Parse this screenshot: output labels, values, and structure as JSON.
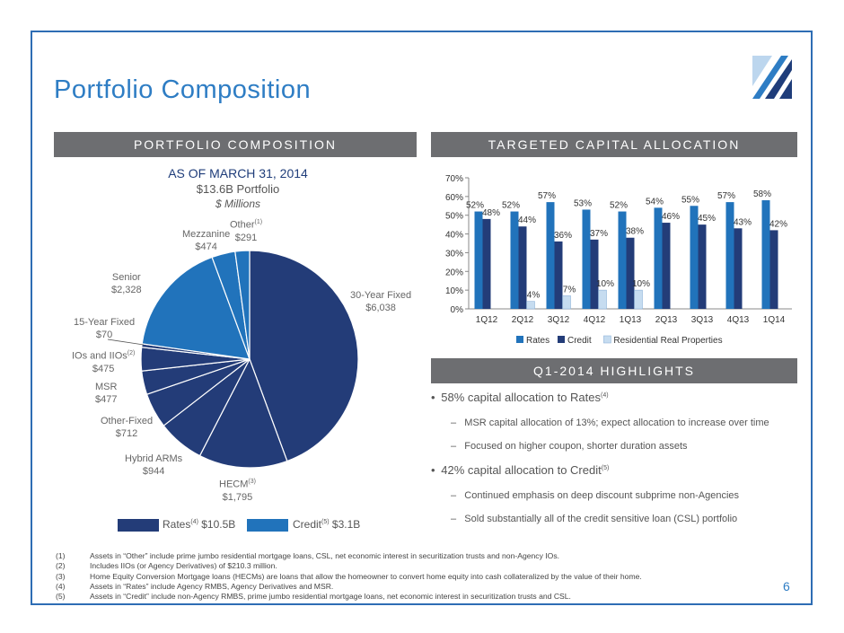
{
  "title": "Portfolio Composition",
  "page_number": "6",
  "headers": {
    "left": "PORTFOLIO COMPOSITION",
    "right_top": "TARGETED CAPITAL ALLOCATION",
    "right_bottom": "Q1-2014 HIGHLIGHTS"
  },
  "pie": {
    "as_of": "AS OF MARCH 31, 2014",
    "total": "$13.6B Portfolio",
    "units": "$ Millions",
    "slices": [
      {
        "key": "thirty",
        "label": "30-Year Fixed",
        "sup": "",
        "value_text": "$6,038",
        "value": 6038,
        "color": "#233c78"
      },
      {
        "key": "hecm",
        "label": "HECM",
        "sup": "(3)",
        "value_text": "$1,795",
        "value": 1795,
        "color": "#233c78"
      },
      {
        "key": "hybrid",
        "label": "Hybrid ARMs",
        "sup": "",
        "value_text": "$944",
        "value": 944,
        "color": "#233c78"
      },
      {
        "key": "otherfixed",
        "label": "Other-Fixed",
        "sup": "",
        "value_text": "$712",
        "value": 712,
        "color": "#233c78"
      },
      {
        "key": "msr",
        "label": "MSR",
        "sup": "",
        "value_text": "$477",
        "value": 477,
        "color": "#233c78"
      },
      {
        "key": "ios",
        "label": "IOs and IIOs",
        "sup": "(2)",
        "value_text": "$475",
        "value": 475,
        "color": "#233c78"
      },
      {
        "key": "fifteen",
        "label": "15-Year Fixed",
        "sup": "",
        "value_text": "$70",
        "value": 70,
        "color": "#233c78"
      },
      {
        "key": "senior",
        "label": "Senior",
        "sup": "",
        "value_text": "$2,328",
        "value": 2328,
        "color": "#2173bb"
      },
      {
        "key": "mezz",
        "label": "Mezzanine",
        "sup": "",
        "value_text": "$474",
        "value": 474,
        "color": "#2173bb"
      },
      {
        "key": "other",
        "label": "Other",
        "sup": "(1)",
        "value_text": "$291",
        "value": 291,
        "color": "#2173bb"
      }
    ],
    "legend": [
      {
        "label": "Rates",
        "sup": "(4)",
        "value": " $10.5B",
        "color": "#233c78"
      },
      {
        "label": "Credit",
        "sup": "(5)",
        "value": " $3.1B",
        "color": "#2173bb"
      }
    ]
  },
  "chart_data": {
    "type": "bar",
    "categories": [
      "1Q12",
      "2Q12",
      "3Q12",
      "4Q12",
      "1Q13",
      "2Q13",
      "3Q13",
      "4Q13",
      "1Q14"
    ],
    "series": [
      {
        "name": "Rates",
        "color": "#2173bb",
        "values": [
          52,
          52,
          57,
          53,
          52,
          54,
          55,
          57,
          58
        ]
      },
      {
        "name": "Credit",
        "color": "#233c78",
        "values": [
          48,
          44,
          36,
          37,
          38,
          46,
          45,
          43,
          42
        ]
      },
      {
        "name": "Residential Real Properties",
        "color": "#c6dcf0",
        "values": [
          null,
          4,
          7,
          10,
          10,
          null,
          null,
          null,
          null
        ]
      }
    ],
    "yticks": [
      "0%",
      "10%",
      "20%",
      "30%",
      "40%",
      "50%",
      "60%",
      "70%"
    ],
    "ylim": [
      0,
      70
    ],
    "legend_position": "bottom",
    "grid": false
  },
  "highlights": [
    {
      "level": 1,
      "text": "58% capital allocation to Rates",
      "sup": "(4)"
    },
    {
      "level": 2,
      "text": "MSR capital allocation of 13%; expect allocation to increase over time",
      "sup": ""
    },
    {
      "level": 2,
      "text": "Focused on higher coupon, shorter duration assets",
      "sup": ""
    },
    {
      "level": 1,
      "text": "42% capital allocation to Credit",
      "sup": "(5)"
    },
    {
      "level": 2,
      "text": "Continued emphasis on deep discount subprime non-Agencies",
      "sup": ""
    },
    {
      "level": 2,
      "text": "Sold substantially all of the credit sensitive loan (CSL) portfolio",
      "sup": ""
    }
  ],
  "footnotes": [
    {
      "num": "(1)",
      "text": "Assets in “Other” include prime jumbo residential mortgage loans, CSL, net economic interest in securitization trusts and non-Agency IOs."
    },
    {
      "num": "(2)",
      "text": "Includes IIOs (or Agency Derivatives) of $210.3 million."
    },
    {
      "num": "(3)",
      "text": "Home Equity Conversion Mortgage loans (HECMs) are loans that allow the homeowner to convert home equity into cash collateralized by the value of their home."
    },
    {
      "num": "(4)",
      "text": "Assets in “Rates” include Agency RMBS, Agency Derivatives and MSR."
    },
    {
      "num": "(5)",
      "text": "Assets in “Credit” include non-Agency RMBS, prime jumbo residential mortgage loans, net economic interest in securitization trusts and CSL."
    }
  ]
}
